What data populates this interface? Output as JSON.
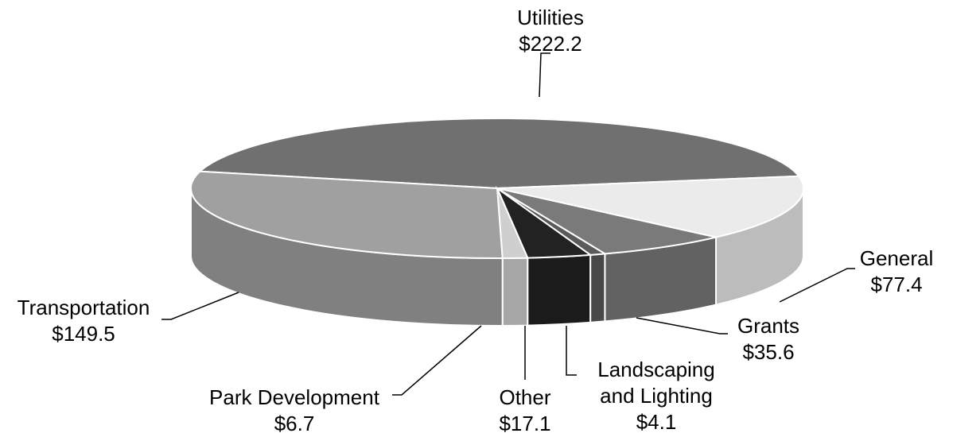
{
  "chart_data": {
    "type": "pie",
    "categories": [
      "Utilities",
      "General",
      "Grants",
      "Landscaping and Lighting",
      "Other",
      "Park Development",
      "Transportation"
    ],
    "values": [
      222.2,
      77.4,
      35.6,
      4.1,
      17.1,
      6.7,
      149.5
    ],
    "value_labels": [
      "$222.2",
      "$77.4",
      "$35.6",
      "$4.1",
      "$17.1",
      "$6.7",
      "$149.5"
    ],
    "colors": [
      "#707070",
      "#ebebeb",
      "#7a7a7a",
      "#5a5a5a",
      "#222222",
      "#cfcfcf",
      "#a0a0a0"
    ]
  }
}
